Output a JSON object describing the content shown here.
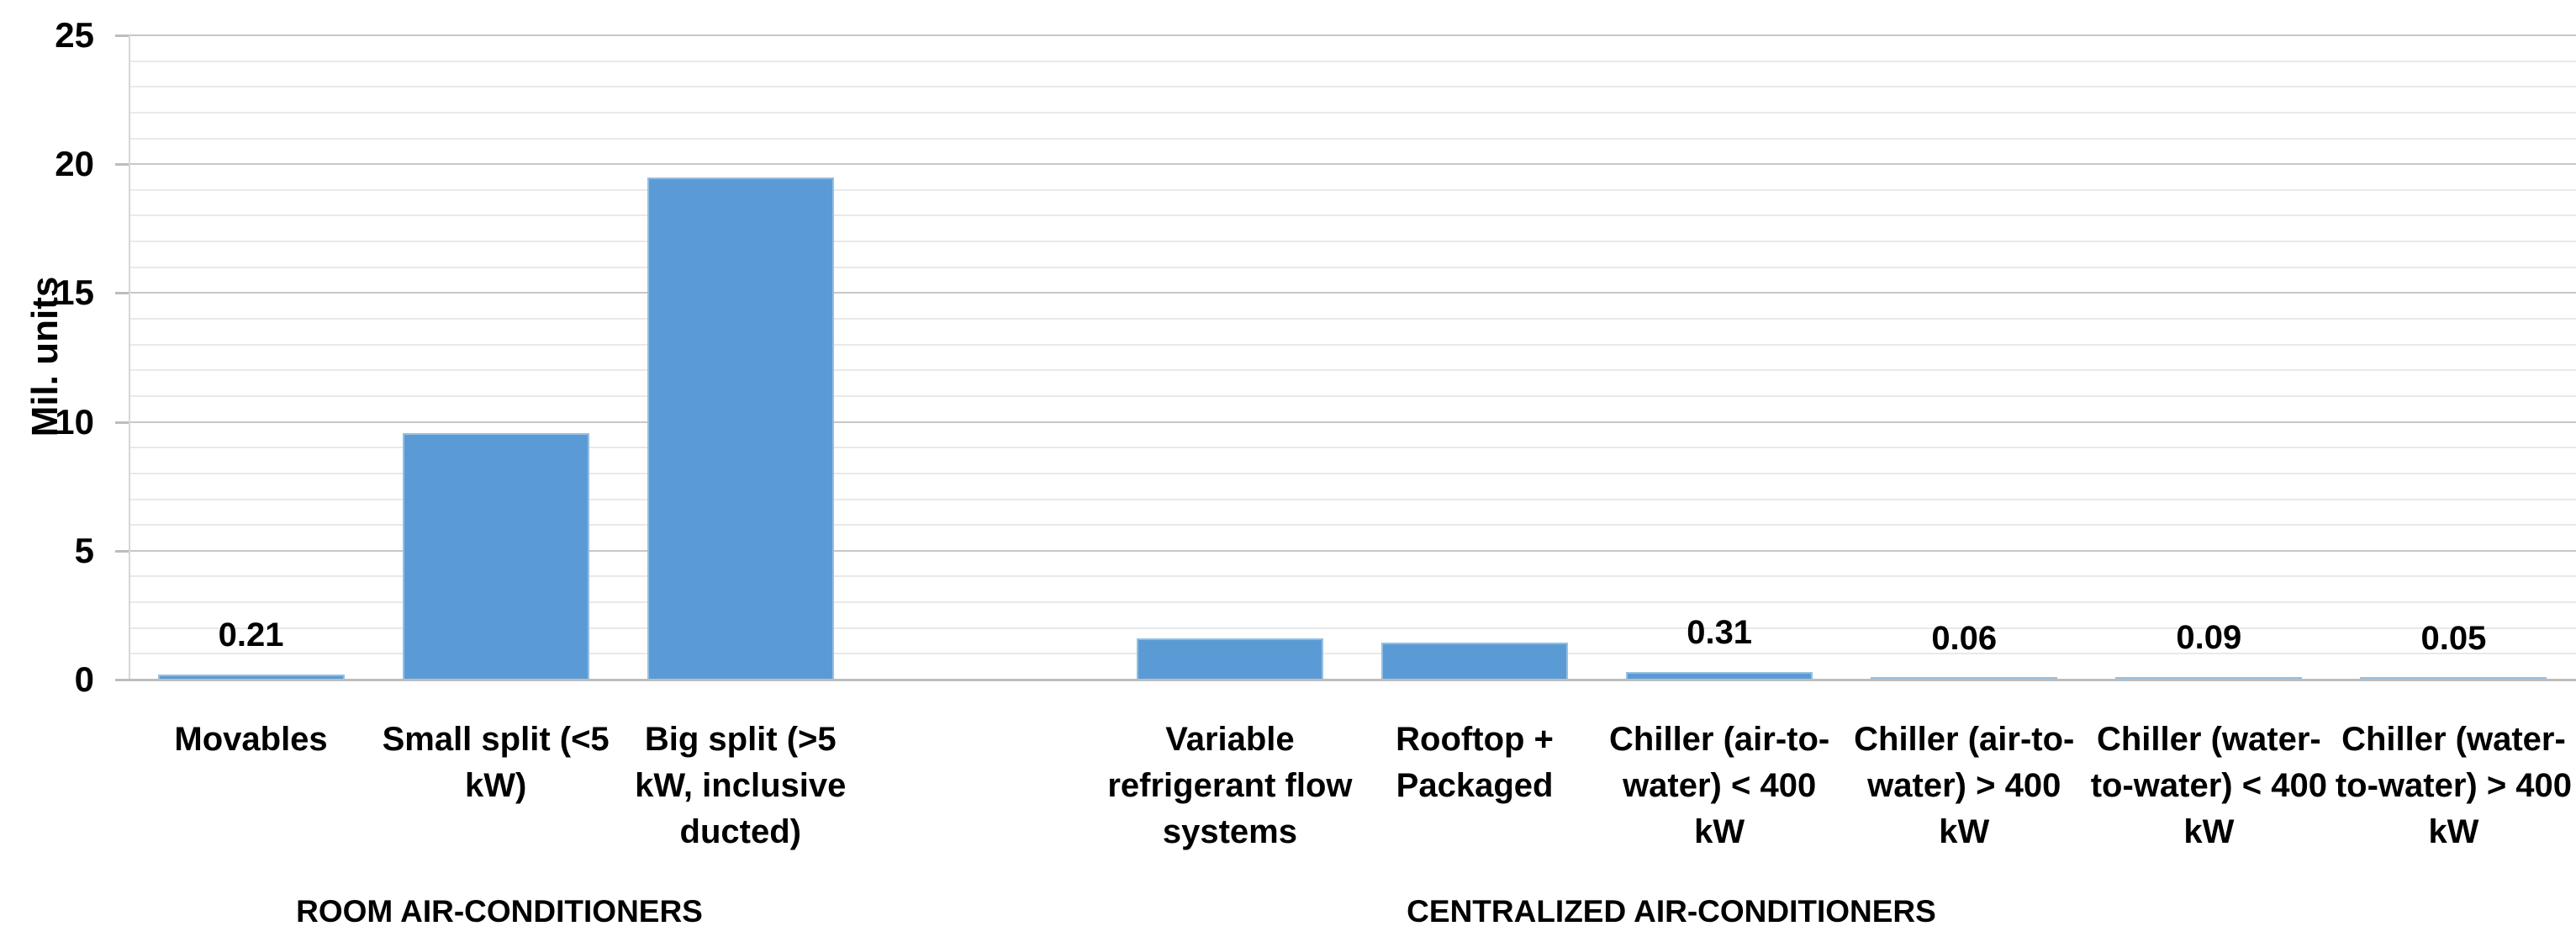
{
  "chart_data": {
    "type": "bar",
    "title": "",
    "ylabel": "Mil. units",
    "xlabel": "",
    "ylim": [
      0,
      25
    ],
    "y_major_unit": 5,
    "y_minor_unit": 1,
    "y_ticks": [
      "0",
      "5",
      "10",
      "15",
      "20",
      "25"
    ],
    "grid": "horizontal major and minor gridlines",
    "legend": "none",
    "bar_color": "#5B9BD5",
    "bar_edge_color": "#95BFE3",
    "categories": [
      "Movables",
      "Small split (<5 kW)",
      "Big split (>5 kW, inclusive ducted)",
      "",
      "Variable refrigerant flow systems",
      "Rooftop + Packaged",
      "Chiller (air-to-water) < 400 kW",
      "Chiller (air-to-water) > 400 kW",
      "Chiller (water-to-water) < 400 kW",
      "Chiller (water-to-water) > 400 kW"
    ],
    "category_lines": [
      [
        "Movables"
      ],
      [
        "Small split (<5",
        "kW)"
      ],
      [
        "Big split (>5",
        "kW, inclusive",
        "ducted)"
      ],
      [],
      [
        "Variable",
        "refrigerant flow",
        "systems"
      ],
      [
        "Rooftop +",
        "Packaged"
      ],
      [
        "Chiller (air-to-",
        "water) < 400",
        "kW"
      ],
      [
        "Chiller (air-to-",
        "water) > 400",
        "kW"
      ],
      [
        "Chiller (water-",
        "to-water) < 400",
        "kW"
      ],
      [
        "Chiller (water-",
        "to-water) > 400",
        "kW"
      ]
    ],
    "values": [
      0.21,
      9.55,
      19.5,
      null,
      1.6,
      1.45,
      0.31,
      0.06,
      0.09,
      0.05
    ],
    "data_labels": [
      "0.21",
      "",
      "",
      "",
      "",
      "",
      "0.31",
      "0.06",
      "0.09",
      "0.05"
    ],
    "group_labels": [
      {
        "label": "ROOM AIR-CONDITIONERS"
      },
      {
        "label": "CENTRALIZED AIR-CONDITIONERS"
      }
    ]
  }
}
